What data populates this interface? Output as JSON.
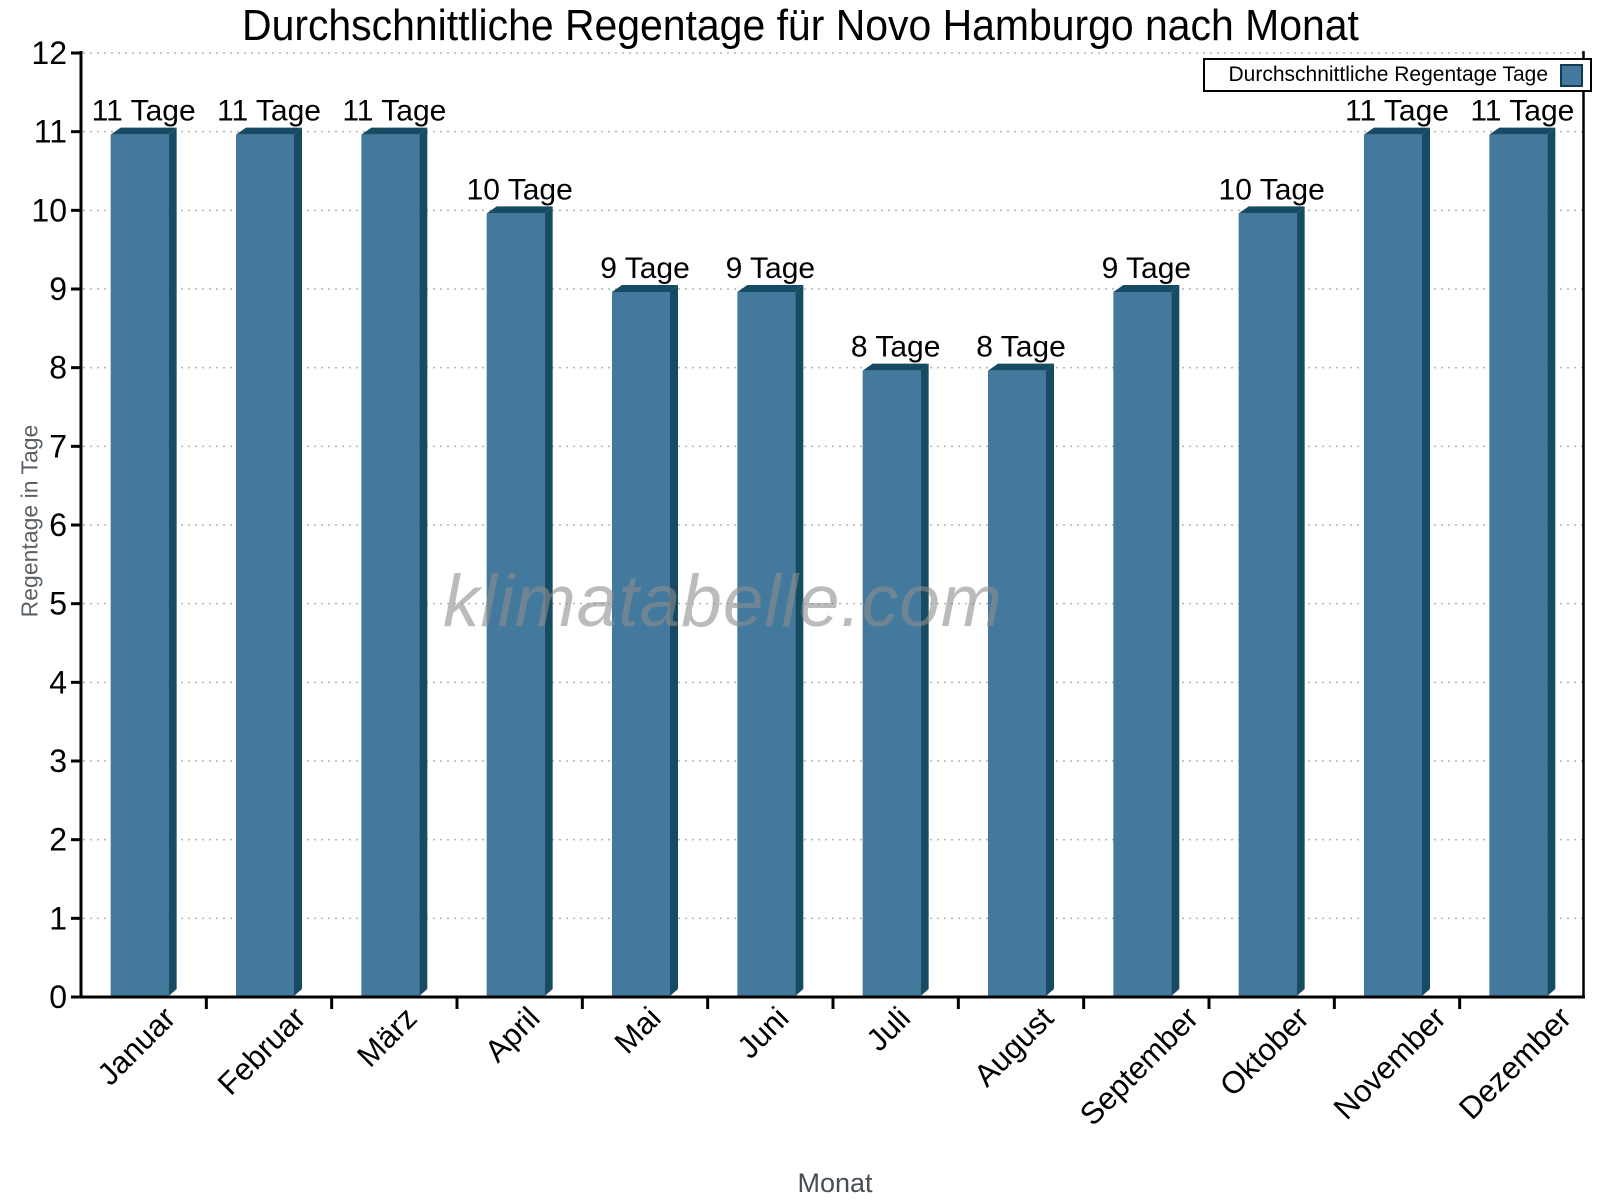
{
  "figure": {
    "title": "Durchschnittliche Regentage für Novo Hamburgo nach Monat",
    "watermark": "klimatabelle.com"
  },
  "legend": {
    "label": "Durchschnittliche Regentage Tage"
  },
  "axes": {
    "xlabel": "Monat",
    "ylabel": "Regentage in Tage"
  },
  "chart_data": {
    "type": "bar",
    "title": "Durchschnittliche Regentage für Novo Hamburgo nach Monat",
    "categories": [
      "Januar",
      "Februar",
      "März",
      "April",
      "Mai",
      "Juni",
      "Juli",
      "August",
      "September",
      "Oktober",
      "November",
      "Dezember"
    ],
    "series": [
      {
        "name": "Durchschnittliche Regentage Tage",
        "values": [
          11,
          11,
          11,
          10,
          9,
          9,
          8,
          8,
          9,
          10,
          11,
          11
        ]
      }
    ],
    "value_labels": [
      "11 Tage",
      "11 Tage",
      "11 Tage",
      "10 Tage",
      "9 Tage",
      "9 Tage",
      "8 Tage",
      "8 Tage",
      "9 Tage",
      "10 Tage",
      "11 Tage",
      "11 Tage"
    ],
    "value_label_unit": "Tage",
    "xlabel": "Monat",
    "ylabel": "Regentage in Tage",
    "ylim": [
      0,
      12
    ],
    "ytick_step": 1,
    "grid": "horizontal-dotted",
    "legend_position": "top-right",
    "watermark": "klimatabelle.com",
    "colors": {
      "bar_face": "#44799E",
      "bar_shade": "#174A63",
      "grid": "#B3B3B3",
      "axis": "#000000",
      "tick_label": "#000000",
      "axis_title": "#5A6268"
    }
  }
}
